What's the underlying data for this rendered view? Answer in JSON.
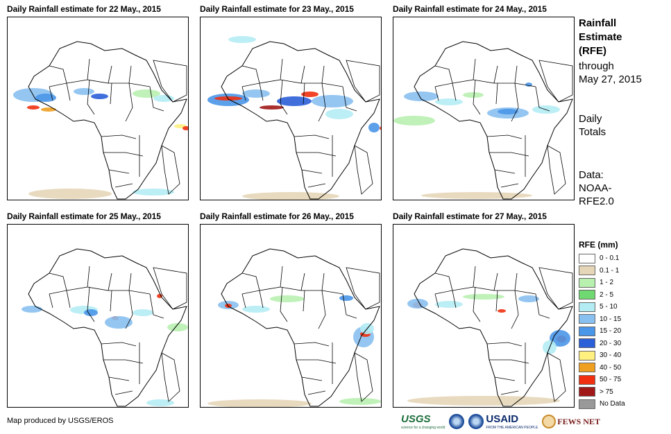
{
  "panels": [
    {
      "id": "p1",
      "title": "Daily Rainfall estimate for 22 May., 2015",
      "rain": [
        [
          "a",
          "10-15",
          8,
          120,
          58,
          20
        ],
        [
          "a",
          "15-20",
          40,
          128,
          30,
          12
        ],
        [
          "a",
          "50-75",
          28,
          145,
          18,
          6
        ],
        [
          "a",
          "40-50",
          48,
          148,
          22,
          6
        ],
        [
          "a",
          "10-15",
          95,
          120,
          30,
          10
        ],
        [
          "a",
          "20-30",
          120,
          128,
          25,
          8
        ],
        [
          "a",
          "1-2",
          180,
          122,
          40,
          12
        ],
        [
          "a",
          "5-10",
          210,
          130,
          30,
          10
        ],
        [
          "a",
          "30-40",
          240,
          172,
          18,
          6
        ],
        [
          "a",
          "50-75",
          252,
          175,
          10,
          6
        ],
        [
          "a",
          "0.1-1",
          30,
          265,
          120,
          15
        ],
        [
          "a",
          "5-10",
          180,
          265,
          60,
          10
        ]
      ]
    },
    {
      "id": "p2",
      "title": "Daily Rainfall estimate for 23 May., 2015",
      "rain": [
        [
          "a",
          "15-20",
          10,
          128,
          60,
          18
        ],
        [
          "a",
          "50-75",
          20,
          132,
          40,
          6
        ],
        [
          "a",
          "10-15",
          60,
          122,
          40,
          12
        ],
        [
          "a",
          "75+",
          85,
          145,
          35,
          6
        ],
        [
          "a",
          "20-30",
          110,
          132,
          50,
          14
        ],
        [
          "a",
          "50-75",
          145,
          125,
          25,
          8
        ],
        [
          "a",
          "10-15",
          160,
          130,
          60,
          18
        ],
        [
          "a",
          "5-10",
          180,
          150,
          40,
          15
        ],
        [
          "a",
          "50-75",
          258,
          175,
          8,
          6
        ],
        [
          "a",
          "15-20",
          242,
          170,
          16,
          14
        ],
        [
          "a",
          "5-10",
          40,
          45,
          40,
          10
        ],
        [
          "a",
          "0.1-1",
          60,
          270,
          140,
          12
        ]
      ]
    },
    {
      "id": "p3",
      "title": "Daily Rainfall estimate for 24 May., 2015",
      "rain": [
        [
          "a",
          "10-15",
          15,
          125,
          50,
          14
        ],
        [
          "a",
          "5-10",
          60,
          135,
          40,
          10
        ],
        [
          "a",
          "1-2",
          100,
          126,
          30,
          8
        ],
        [
          "a",
          "10-15",
          135,
          148,
          60,
          16
        ],
        [
          "a",
          "15-20",
          150,
          150,
          30,
          8
        ],
        [
          "a",
          "5-10",
          200,
          145,
          40,
          12
        ],
        [
          "a",
          "1-2",
          0,
          160,
          60,
          14
        ],
        [
          "a",
          "15-20",
          190,
          112,
          10,
          6
        ],
        [
          "a",
          "0.1-1",
          40,
          270,
          160,
          10
        ]
      ]
    },
    {
      "id": "p4",
      "title": "Daily Rainfall estimate for 25 May., 2015",
      "rain": [
        [
          "a",
          "10-15",
          20,
          135,
          30,
          10
        ],
        [
          "a",
          "5-10",
          90,
          135,
          40,
          12
        ],
        [
          "a",
          "15-20",
          110,
          140,
          20,
          10
        ],
        [
          "a",
          "50-75",
          150,
          150,
          10,
          6
        ],
        [
          "a",
          "10-15",
          140,
          150,
          40,
          18
        ],
        [
          "a",
          "50-75",
          215,
          118,
          8,
          6
        ],
        [
          "a",
          "5-10",
          180,
          140,
          30,
          10
        ],
        [
          "a",
          "1-2",
          230,
          160,
          30,
          12
        ],
        [
          "a",
          "5-10",
          200,
          270,
          40,
          10
        ]
      ]
    },
    {
      "id": "p5",
      "title": "Daily Rainfall estimate for 26 May., 2015",
      "rain": [
        [
          "a",
          "10-15",
          25,
          128,
          30,
          12
        ],
        [
          "a",
          "50-75",
          35,
          132,
          10,
          6
        ],
        [
          "a",
          "5-10",
          60,
          135,
          40,
          10
        ],
        [
          "a",
          "1-2",
          100,
          120,
          50,
          10
        ],
        [
          "a",
          "15-20",
          200,
          120,
          20,
          8
        ],
        [
          "a",
          "10-15",
          220,
          165,
          30,
          30
        ],
        [
          "a",
          "50-75",
          230,
          172,
          15,
          8
        ],
        [
          "a",
          "5-10",
          230,
          160,
          20,
          16
        ],
        [
          "a",
          "0.1-1",
          10,
          270,
          150,
          12
        ],
        [
          "a",
          "1-2",
          200,
          268,
          60,
          10
        ]
      ]
    },
    {
      "id": "p6",
      "title": "Daily Rainfall estimate for 27 May., 2015",
      "rain": [
        [
          "a",
          "50-75",
          28,
          130,
          14,
          8
        ],
        [
          "a",
          "10-15",
          20,
          125,
          30,
          14
        ],
        [
          "a",
          "5-10",
          60,
          128,
          40,
          10
        ],
        [
          "a",
          "1-2",
          100,
          118,
          60,
          8
        ],
        [
          "a",
          "50-75",
          150,
          140,
          12,
          5
        ],
        [
          "a",
          "10-15",
          180,
          120,
          30,
          10
        ],
        [
          "a",
          "50-75",
          235,
          178,
          14,
          10
        ],
        [
          "a",
          "15-20",
          225,
          170,
          30,
          24
        ],
        [
          "a",
          "5-10",
          215,
          185,
          20,
          20
        ],
        [
          "a",
          "0.1-1",
          20,
          265,
          220,
          14
        ]
      ]
    }
  ],
  "side": {
    "title_line1": "Rainfall",
    "title_line2": "Estimate",
    "title_line3": "(RFE)",
    "through_label": "through",
    "through_date": "May 27, 2015",
    "totals_line1": "Daily",
    "totals_line2": "Totals",
    "data_line1": "Data:",
    "data_line2": "NOAA-",
    "data_line3": "RFE2.0"
  },
  "legend": {
    "title": "RFE (mm)",
    "items": [
      {
        "label": "0 - 0.1",
        "color": "#ffffff"
      },
      {
        "label": "0.1 - 1",
        "color": "#e6d6b8"
      },
      {
        "label": "1 - 2",
        "color": "#b8f0b0"
      },
      {
        "label": "2 - 5",
        "color": "#70d870"
      },
      {
        "label": "5 - 10",
        "color": "#b4ecf4"
      },
      {
        "label": "10 - 15",
        "color": "#88c0f0"
      },
      {
        "label": "15 - 20",
        "color": "#4a96e8"
      },
      {
        "label": "20 - 30",
        "color": "#2b5fd8"
      },
      {
        "label": "30 - 40",
        "color": "#fff080"
      },
      {
        "label": "40 - 50",
        "color": "#f0a020"
      },
      {
        "label": "50 - 75",
        "color": "#f03010"
      },
      {
        "label": "> 75",
        "color": "#a01818"
      },
      {
        "label": "No Data",
        "color": "#999999"
      }
    ]
  },
  "colors": {
    "0.1-1": "#e6d6b8",
    "1-2": "#b8f0b0",
    "2-5": "#70d870",
    "5-10": "#b4ecf4",
    "10-15": "#88c0f0",
    "15-20": "#4a96e8",
    "20-30": "#2b5fd8",
    "30-40": "#fff080",
    "40-50": "#f0a020",
    "50-75": "#f03010",
    "75+": "#a01818"
  },
  "credit": "Map produced by USGS/EROS",
  "logos": {
    "usgs": "USGS",
    "usgs_tag": "science for a changing world",
    "usaid": "USAID",
    "usaid_tag": "FROM THE AMERICAN PEOPLE",
    "fews": "FEWS NET"
  }
}
